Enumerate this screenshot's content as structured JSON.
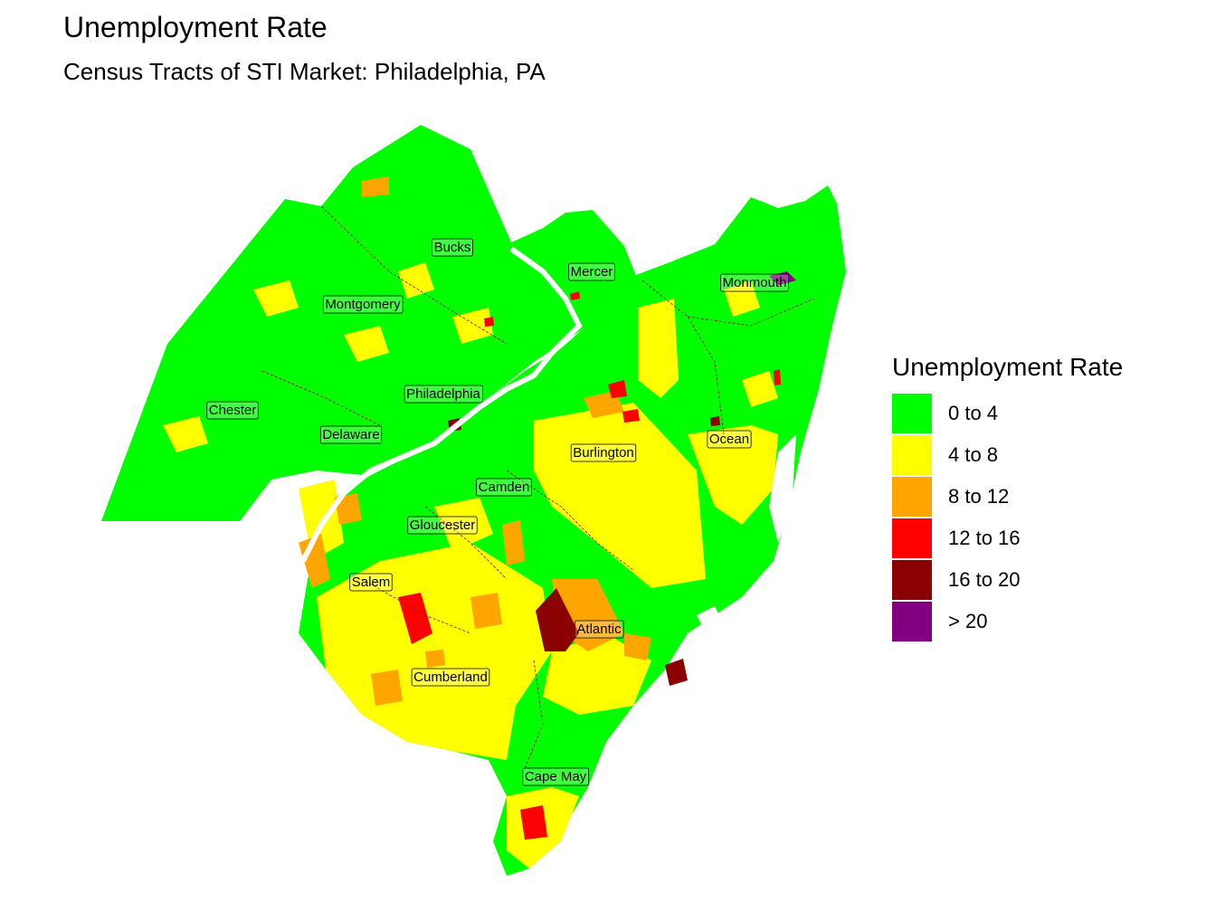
{
  "title": "Unemployment Rate",
  "subtitle": "Census Tracts of STI Market: Philadelphia, PA",
  "legend": {
    "title": "Unemployment Rate",
    "items": [
      {
        "label": "0 to 4",
        "color": "#00ff00"
      },
      {
        "label": "4 to 8",
        "color": "#ffff00"
      },
      {
        "label": "8 to 12",
        "color": "#ffa500"
      },
      {
        "label": "12 to 16",
        "color": "#ff0000"
      },
      {
        "label": "16 to 20",
        "color": "#8b0000"
      },
      {
        "label": "> 20",
        "color": "#800080"
      }
    ]
  },
  "counties": [
    {
      "id": "bucks",
      "label": "Bucks"
    },
    {
      "id": "mercer",
      "label": "Mercer"
    },
    {
      "id": "monmouth",
      "label": "Monmouth"
    },
    {
      "id": "montgomery",
      "label": "Montgomery"
    },
    {
      "id": "philadelphia",
      "label": "Philadelphia"
    },
    {
      "id": "chester",
      "label": "Chester"
    },
    {
      "id": "delaware",
      "label": "Delaware"
    },
    {
      "id": "ocean",
      "label": "Ocean"
    },
    {
      "id": "burlington",
      "label": "Burlington"
    },
    {
      "id": "camden",
      "label": "Camden"
    },
    {
      "id": "gloucester",
      "label": "Gloucester"
    },
    {
      "id": "salem",
      "label": "Salem"
    },
    {
      "id": "atlantic",
      "label": "Atlantic"
    },
    {
      "id": "cumberland",
      "label": "Cumberland"
    },
    {
      "id": "cape-may",
      "label": "Cape May"
    }
  ]
}
